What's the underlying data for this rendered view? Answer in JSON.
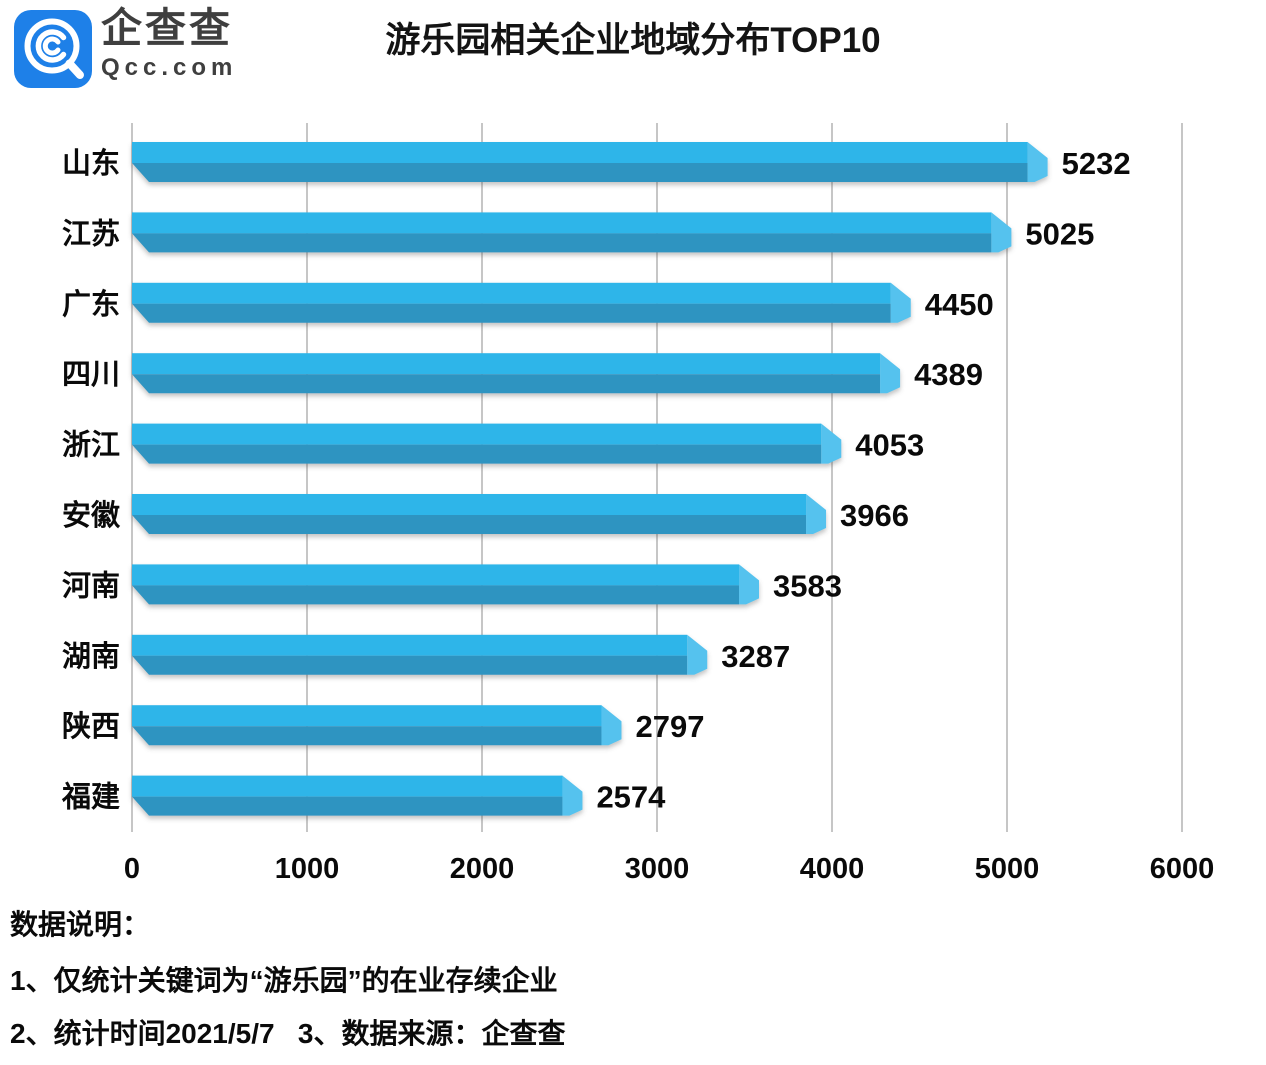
{
  "brand": {
    "name": "企查查",
    "domain": "Qcc.com",
    "logo_color": "#1e80e8",
    "logo_icon": "qcc-magnifier-icon"
  },
  "chart_data": {
    "type": "bar",
    "orientation": "horizontal",
    "title": "游乐园相关企业地域分布TOP10",
    "categories": [
      "山东",
      "江苏",
      "广东",
      "四川",
      "浙江",
      "安徽",
      "河南",
      "湖南",
      "陕西",
      "福建"
    ],
    "values": [
      5232,
      5025,
      4450,
      4389,
      4053,
      3966,
      3583,
      3287,
      2797,
      2574
    ],
    "xlabel": "",
    "ylabel": "",
    "xlim": [
      0,
      6000
    ],
    "x_ticks": [
      0,
      1000,
      2000,
      3000,
      4000,
      5000,
      6000
    ],
    "grid": "vertical",
    "value_labels": true,
    "colors": {
      "bar_top": "#2fb5e9",
      "bar_front": "#2e94c1",
      "bar_cap": "#54c2ee",
      "grid_line": "#c6c6c6",
      "label_text": "#0a0a0a"
    }
  },
  "notes": {
    "heading": "数据说明：",
    "line1": "1、仅统计关键词为“游乐园”的在业存续企业",
    "line2": "2、统计时间2021/5/7   3、数据来源：企查查"
  }
}
